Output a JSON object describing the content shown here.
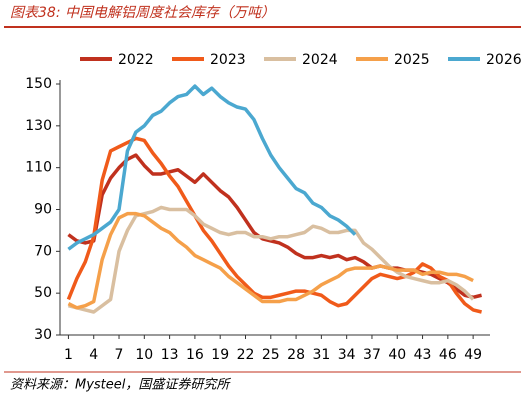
{
  "chart_data": {
    "type": "line",
    "title": "图表38:  中国电解铝周度社会库存（万吨）",
    "source": "资料来源：Mysteel，国盛证券研究所",
    "x": [
      1,
      2,
      3,
      4,
      5,
      6,
      7,
      8,
      9,
      10,
      11,
      12,
      13,
      14,
      15,
      16,
      17,
      18,
      19,
      20,
      21,
      22,
      23,
      24,
      25,
      26,
      27,
      28,
      29,
      30,
      31,
      32,
      33,
      34,
      35,
      36,
      37,
      38,
      39,
      40,
      41,
      42,
      43,
      44,
      45,
      46,
      47,
      48,
      49,
      50
    ],
    "xlim": [
      0,
      51
    ],
    "xticks": [
      1,
      4,
      7,
      10,
      13,
      16,
      19,
      22,
      25,
      28,
      31,
      34,
      37,
      40,
      43,
      46,
      49
    ],
    "ylim": [
      30,
      150
    ],
    "yticks": [
      30,
      50,
      70,
      90,
      110,
      130,
      150
    ],
    "grid": false,
    "legend": "top",
    "series": [
      {
        "name": "2022",
        "color": "#c0311e",
        "values": [
          78,
          75,
          74,
          75,
          97,
          105,
          110,
          114,
          116,
          111,
          107,
          107,
          108,
          109,
          106,
          103,
          107,
          103,
          99,
          96,
          91,
          85,
          79,
          76,
          75,
          74,
          72,
          69,
          67,
          67,
          68,
          67,
          68,
          66,
          67,
          65,
          62,
          63,
          62,
          62,
          61,
          61,
          60,
          59,
          57,
          55,
          52,
          49,
          48,
          49
        ]
      },
      {
        "name": "2023",
        "color": "#f05a1a",
        "values": [
          47,
          57,
          65,
          77,
          104,
          118,
          120,
          122,
          124,
          123,
          117,
          112,
          106,
          101,
          94,
          87,
          80,
          75,
          69,
          63,
          58,
          54,
          50,
          48,
          48,
          49,
          50,
          51,
          51,
          50,
          49,
          46,
          44,
          45,
          49,
          53,
          57,
          59,
          58,
          57,
          58,
          60,
          64,
          62,
          58,
          56,
          50,
          45,
          42,
          41
        ]
      },
      {
        "name": "2024",
        "color": "#d9bfa0",
        "values": [
          44,
          43,
          42,
          41,
          44,
          47,
          70,
          80,
          87,
          88,
          89,
          91,
          90,
          90,
          90,
          87,
          83,
          81,
          79,
          78,
          79,
          79,
          77,
          77,
          76,
          77,
          77,
          78,
          79,
          82,
          81,
          79,
          79,
          80,
          80,
          74,
          71,
          67,
          63,
          60,
          58,
          57,
          56,
          55,
          55,
          56,
          54,
          51,
          47,
          null
        ]
      },
      {
        "name": "2025",
        "color": "#f5a04a",
        "values": [
          45,
          43,
          44,
          46,
          66,
          78,
          86,
          88,
          88,
          87,
          84,
          81,
          79,
          75,
          72,
          68,
          66,
          64,
          62,
          58,
          55,
          52,
          49,
          46,
          46,
          46,
          47,
          47,
          49,
          51,
          54,
          56,
          58,
          61,
          62,
          62,
          62,
          63,
          62,
          61,
          61,
          61,
          59,
          60,
          60,
          59,
          59,
          58,
          56,
          null
        ]
      },
      {
        "name": "2026",
        "color": "#4ba8d0",
        "values": [
          71,
          74,
          76,
          78,
          81,
          84,
          90,
          118,
          127,
          130,
          135,
          137,
          141,
          144,
          145,
          149,
          145,
          148,
          144,
          141,
          139,
          138,
          133,
          124,
          116,
          110,
          105,
          100,
          98,
          93,
          91,
          87,
          85,
          82,
          78,
          null,
          null,
          null,
          null,
          null,
          null,
          null,
          null,
          null,
          null,
          null,
          null,
          null,
          null,
          null
        ]
      }
    ]
  }
}
